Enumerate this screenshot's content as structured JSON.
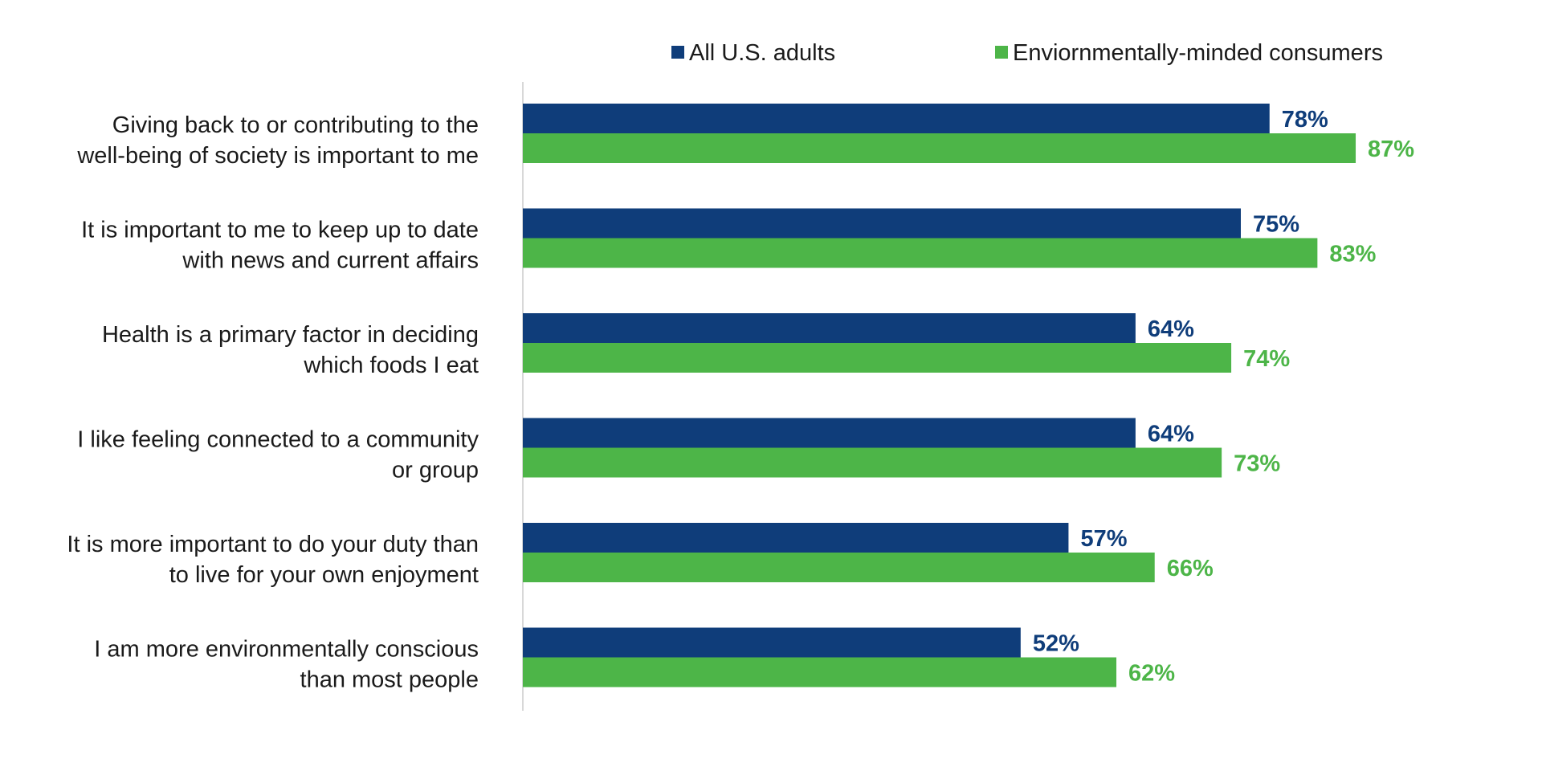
{
  "chart_data": {
    "type": "bar",
    "orientation": "horizontal",
    "categories": [
      [
        "Giving back to or contributing to the",
        "well-being of society is important to me"
      ],
      [
        "It is important to me to keep up to date",
        "with news and current affairs"
      ],
      [
        "Health is a primary factor in deciding",
        "which foods I eat"
      ],
      [
        "I like feeling connected to a community",
        "or group"
      ],
      [
        "It is more important to do your duty than",
        "to live for your own enjoyment"
      ],
      [
        "I am more environmentally conscious",
        "than most people"
      ]
    ],
    "series": [
      {
        "name": "All U.S. adults",
        "color": "#0f3d7a",
        "values": [
          78,
          75,
          64,
          64,
          57,
          52
        ],
        "labels": [
          "78%",
          "75%",
          "64%",
          "64%",
          "57%",
          "52%"
        ]
      },
      {
        "name": "Enviornmentally-minded consumers",
        "color": "#4db548",
        "values": [
          87,
          83,
          74,
          73,
          66,
          62
        ],
        "labels": [
          "87%",
          "83%",
          "74%",
          "73%",
          "66%",
          "62%"
        ]
      }
    ],
    "xlim": [
      0,
      100
    ],
    "legend": "top",
    "grid": false
  }
}
